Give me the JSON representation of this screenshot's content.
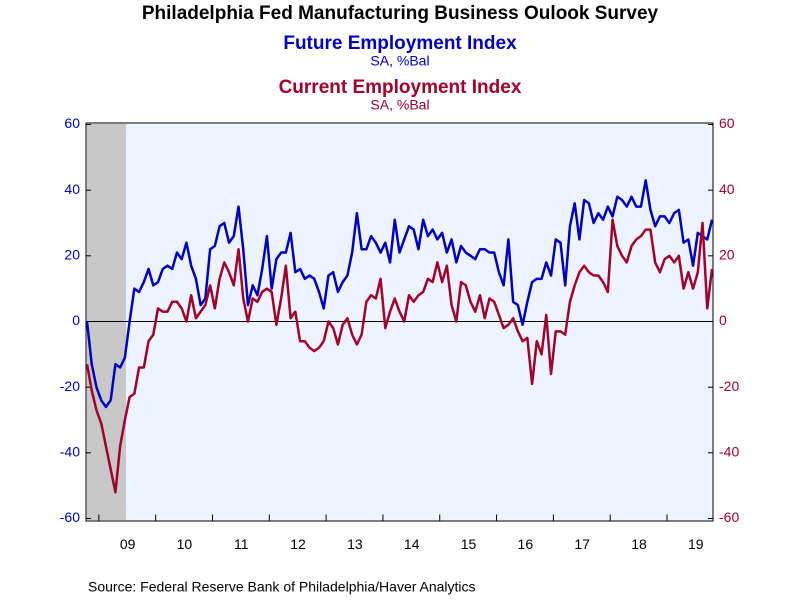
{
  "chart_data": {
    "type": "line",
    "title": "Philadelphia Fed Manufacturing Business Oulook Survey",
    "subtitles": [
      {
        "text": "Future Employment Index",
        "color": "#0000c0"
      },
      {
        "text": "SA, %Bal",
        "color": "#0000c0"
      },
      {
        "text": "Current Employment Index",
        "color": "#a0002a"
      },
      {
        "text": "SA, %Bal",
        "color": "#a0002a"
      }
    ],
    "source": "Source:  Federal Reserve Bank of Philadelphia/Haver Analytics",
    "categories": [
      null,
      null,
      null,
      null,
      null,
      null,
      null,
      null,
      null,
      "09",
      null,
      null,
      null,
      null,
      null,
      null,
      null,
      null,
      null,
      null,
      null,
      "10",
      null,
      null,
      null,
      null,
      null,
      null,
      null,
      null,
      null,
      null,
      null,
      "11",
      null,
      null,
      null,
      null,
      null,
      null,
      null,
      null,
      null,
      null,
      null,
      "12",
      null,
      null,
      null,
      null,
      null,
      null,
      null,
      null,
      null,
      null,
      null,
      "13",
      null,
      null,
      null,
      null,
      null,
      null,
      null,
      null,
      null,
      null,
      null,
      "14",
      null,
      null,
      null,
      null,
      null,
      null,
      null,
      null,
      null,
      null,
      null,
      "15",
      null,
      null,
      null,
      null,
      null,
      null,
      null,
      null,
      null,
      null,
      null,
      "16",
      null,
      null,
      null,
      null,
      null,
      null,
      null,
      null,
      null,
      null,
      null,
      "17",
      null,
      null,
      null,
      null,
      null,
      null,
      null,
      null,
      null,
      null,
      null,
      "18",
      null,
      null,
      null,
      null,
      null,
      null,
      null,
      null,
      null,
      null,
      null,
      "19",
      null,
      null,
      null
    ],
    "series": [
      {
        "name": "Future Employment Index",
        "color": "#0000c0",
        "axis": "y",
        "values": [
          0,
          -13,
          -20,
          -24,
          -26,
          -24,
          -13,
          -14,
          -11,
          0,
          10,
          9,
          12,
          16,
          11,
          12,
          16,
          17,
          16,
          21,
          19,
          24,
          17,
          13,
          5,
          7,
          22,
          23,
          29,
          30,
          24,
          26,
          35,
          22,
          5,
          11,
          8,
          16,
          26,
          10,
          19,
          21,
          21,
          27,
          15,
          16,
          13,
          14,
          13,
          9,
          4,
          14,
          15,
          9,
          12,
          14,
          21,
          33,
          22,
          22,
          26,
          24,
          21,
          24,
          18,
          31,
          21,
          25,
          29,
          28,
          22,
          31,
          26,
          28,
          25,
          27,
          21,
          25,
          18,
          23,
          21,
          20,
          19,
          22,
          22,
          21,
          21,
          15,
          11,
          25,
          6,
          5,
          -1,
          6,
          12,
          13,
          13,
          18,
          14,
          25,
          24,
          11,
          29,
          36,
          25,
          37,
          36,
          30,
          33,
          31,
          35,
          32,
          38,
          37,
          35,
          38,
          35,
          35,
          43,
          34,
          29,
          32,
          32,
          30,
          33,
          34,
          24,
          25,
          17,
          27,
          26,
          25,
          31
        ]
      },
      {
        "name": "Current Employment Index",
        "color": "#a0002a",
        "axis": "y2",
        "values": [
          -13,
          -21,
          -27,
          -31,
          -38,
          -45,
          -52,
          -38,
          -30,
          -23,
          -22,
          -14,
          -14,
          -6,
          -4,
          4,
          3,
          3,
          6,
          6,
          4,
          0,
          8,
          1,
          3,
          5,
          11,
          4,
          13,
          18,
          15,
          11,
          22,
          7,
          0,
          7,
          6,
          9,
          10,
          9,
          -1,
          7,
          17,
          1,
          3,
          -6,
          -6,
          -8,
          -9,
          -8,
          -6,
          0,
          -2,
          -7,
          -1,
          1,
          -4,
          -7,
          -4,
          6,
          8,
          7,
          13,
          -2,
          3,
          7,
          3,
          0,
          8,
          6,
          8,
          9,
          13,
          12,
          18,
          12,
          17,
          5,
          0,
          12,
          11,
          6,
          3,
          8,
          1,
          7,
          6,
          2,
          -2,
          -1,
          1,
          -3,
          -6,
          -5,
          -19,
          -6,
          -10,
          2,
          -16,
          -3,
          -3,
          -4,
          6,
          11,
          15,
          17,
          15,
          14,
          14,
          12,
          9,
          31,
          23,
          20,
          18,
          23,
          25,
          26,
          28,
          28,
          18,
          15,
          19,
          20,
          18,
          20,
          10,
          15,
          10,
          15,
          30,
          4,
          16
        ]
      }
    ],
    "ylim": [
      -60,
      60
    ],
    "yticks": [
      -60,
      -40,
      -20,
      0,
      20,
      40,
      60
    ],
    "y2lim": [
      -60,
      60
    ],
    "y2ticks": [
      -60,
      -40,
      -20,
      0,
      20,
      40,
      60
    ]
  }
}
